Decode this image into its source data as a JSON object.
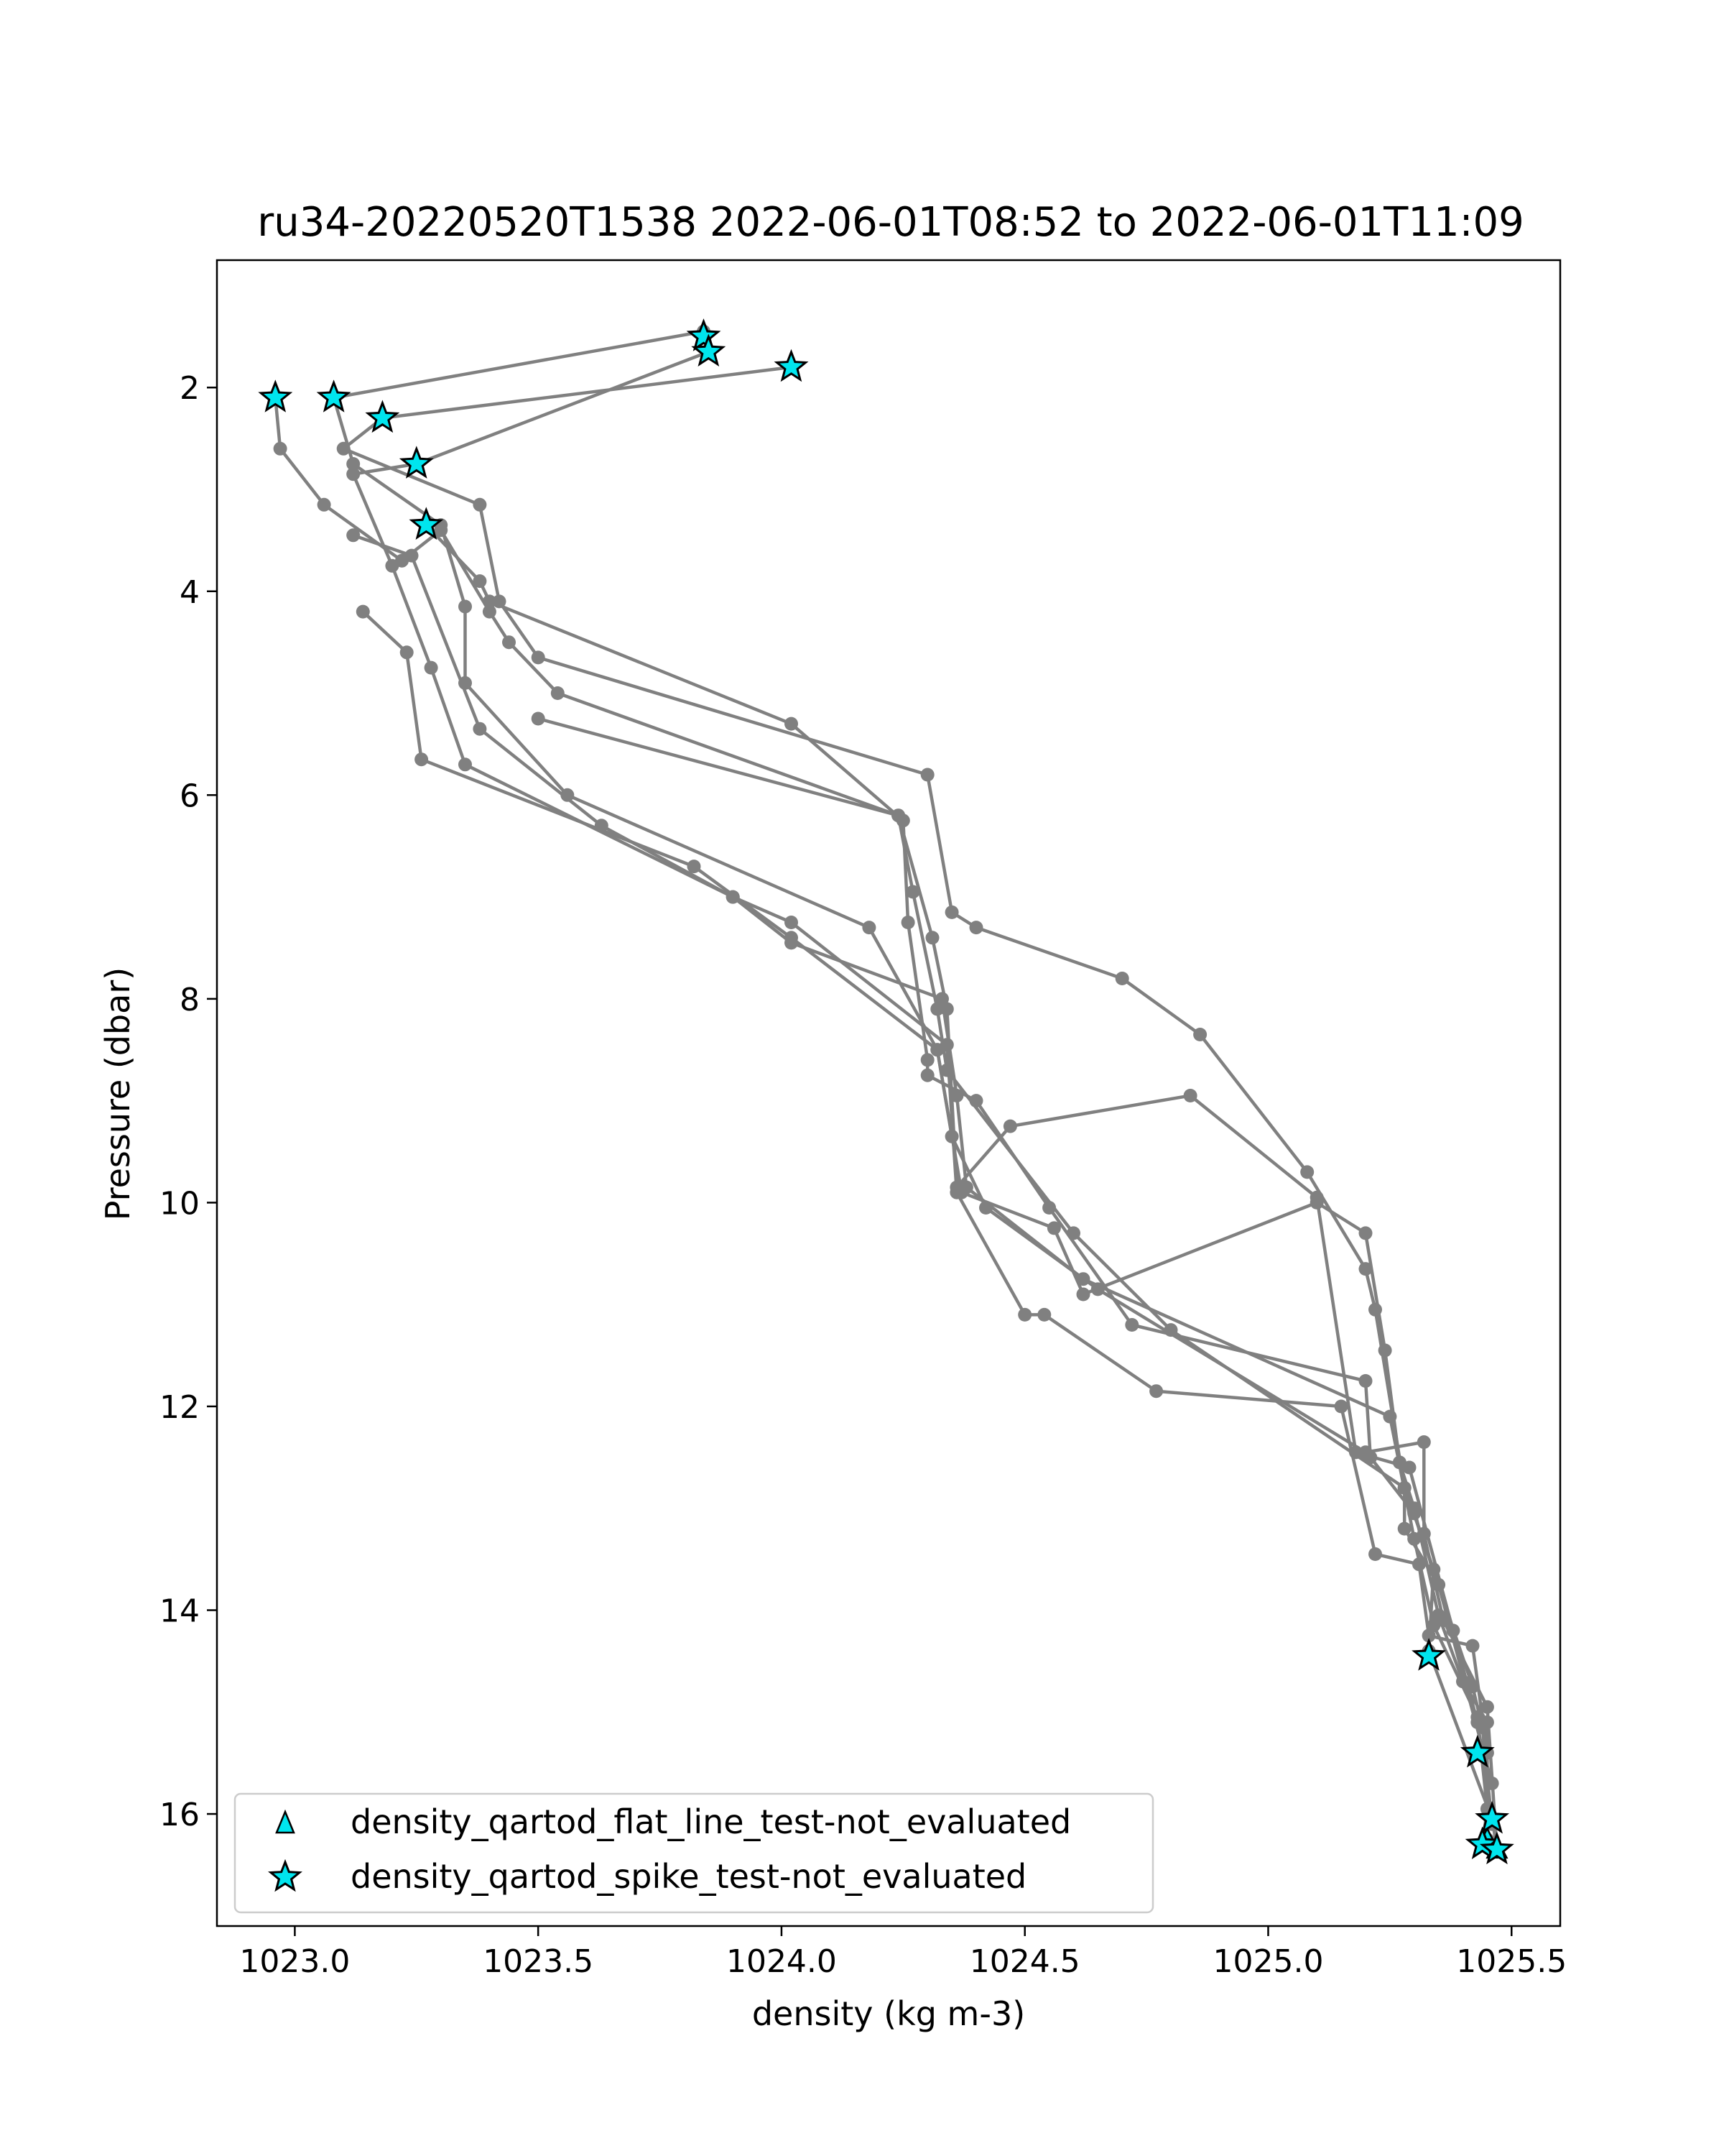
{
  "chart_data": {
    "type": "scatter",
    "title": "ru34-20220520T1538 2022-06-01T08:52 to 2022-06-01T11:09",
    "xlabel": "density (kg m-3)",
    "ylabel": "Pressure (dbar)",
    "xlim": [
      1022.84,
      1025.6
    ],
    "ylim": [
      17.1,
      0.75
    ],
    "y_inverted": true,
    "xticks": [
      1023.0,
      1023.5,
      1024.0,
      1024.5,
      1025.0,
      1025.5
    ],
    "xtick_labels": [
      "1023.0",
      "1023.5",
      "1024.0",
      "1024.5",
      "1025.0",
      "1025.5"
    ],
    "yticks": [
      2,
      4,
      6,
      8,
      10,
      12,
      14,
      16
    ],
    "ytick_labels": [
      "2",
      "4",
      "6",
      "8",
      "10",
      "12",
      "14",
      "16"
    ],
    "grid": false,
    "legend_position": "lower-left",
    "colors": {
      "profile_line": "#808080",
      "flag_marker": "#00e5ee",
      "marker_edge": "#000000"
    },
    "legend": [
      {
        "label": "density_qartod_flat_line_test-not_evaluated",
        "marker": "triangle"
      },
      {
        "label": "density_qartod_spike_test-not_evaluated",
        "marker": "star"
      }
    ],
    "profiles": [
      [
        [
          1023.85,
          1.65
        ],
        [
          1023.25,
          2.75
        ],
        [
          1023.12,
          2.85
        ],
        [
          1023.2,
          3.75
        ],
        [
          1023.28,
          4.75
        ],
        [
          1023.35,
          5.7
        ],
        [
          1023.9,
          7.0
        ],
        [
          1024.02,
          7.45
        ],
        [
          1024.33,
          8.0
        ],
        [
          1024.36,
          8.95
        ],
        [
          1024.38,
          9.85
        ],
        [
          1024.62,
          10.75
        ],
        [
          1025.25,
          12.1
        ],
        [
          1025.3,
          13.3
        ],
        [
          1025.34,
          14.15
        ],
        [
          1025.43,
          15.05
        ],
        [
          1025.45,
          15.95
        ],
        [
          1025.44,
          16.3
        ]
      ],
      [
        [
          1023.84,
          1.45
        ],
        [
          1023.08,
          2.1
        ],
        [
          1023.12,
          2.75
        ],
        [
          1023.3,
          3.35
        ],
        [
          1023.35,
          4.15
        ],
        [
          1023.35,
          4.9
        ],
        [
          1023.56,
          6.0
        ],
        [
          1024.18,
          7.3
        ],
        [
          1024.32,
          8.5
        ],
        [
          1024.35,
          9.35
        ],
        [
          1024.42,
          10.05
        ],
        [
          1024.65,
          10.85
        ],
        [
          1025.2,
          12.45
        ],
        [
          1025.32,
          12.35
        ],
        [
          1025.32,
          13.25
        ],
        [
          1025.36,
          14.1
        ],
        [
          1025.45,
          14.95
        ],
        [
          1025.47,
          16.35
        ]
      ],
      [
        [
          1024.02,
          1.8
        ],
        [
          1023.18,
          2.3
        ],
        [
          1023.1,
          2.6
        ],
        [
          1023.38,
          3.15
        ],
        [
          1023.42,
          4.1
        ],
        [
          1023.5,
          4.65
        ],
        [
          1024.3,
          5.8
        ],
        [
          1024.35,
          7.15
        ],
        [
          1024.4,
          7.3
        ],
        [
          1024.7,
          7.8
        ],
        [
          1024.86,
          8.35
        ],
        [
          1025.08,
          9.7
        ],
        [
          1025.2,
          10.65
        ],
        [
          1025.22,
          11.05
        ],
        [
          1025.28,
          12.8
        ],
        [
          1025.34,
          13.6
        ],
        [
          1025.33,
          14.4
        ],
        [
          1025.46,
          16.05
        ]
      ],
      [
        [
          1022.96,
          2.1
        ],
        [
          1022.97,
          2.6
        ],
        [
          1023.06,
          3.15
        ],
        [
          1023.22,
          3.7
        ],
        [
          1023.3,
          3.4
        ],
        [
          1023.4,
          4.2
        ],
        [
          1023.44,
          4.5
        ],
        [
          1023.54,
          5.0
        ],
        [
          1024.24,
          6.2
        ],
        [
          1024.27,
          6.95
        ],
        [
          1024.32,
          8.1
        ],
        [
          1024.34,
          8.7
        ],
        [
          1024.6,
          10.3
        ],
        [
          1024.8,
          11.25
        ],
        [
          1025.28,
          12.8
        ],
        [
          1025.28,
          13.2
        ],
        [
          1025.35,
          13.75
        ],
        [
          1025.46,
          15.7
        ]
      ],
      [
        [
          1023.27,
          3.35
        ],
        [
          1023.38,
          3.9
        ],
        [
          1023.4,
          4.1
        ],
        [
          1024.02,
          5.3
        ],
        [
          1024.25,
          6.25
        ],
        [
          1024.26,
          7.25
        ],
        [
          1024.3,
          8.6
        ],
        [
          1024.3,
          8.75
        ],
        [
          1024.4,
          9.0
        ],
        [
          1024.55,
          10.05
        ],
        [
          1024.72,
          11.2
        ],
        [
          1025.2,
          11.75
        ],
        [
          1025.21,
          12.5
        ],
        [
          1025.3,
          13.05
        ],
        [
          1025.42,
          14.75
        ],
        [
          1025.44,
          15.15
        ],
        [
          1025.46,
          16.1
        ]
      ],
      [
        [
          1023.12,
          3.45
        ],
        [
          1023.24,
          3.65
        ],
        [
          1023.38,
          5.35
        ],
        [
          1023.63,
          6.3
        ],
        [
          1023.9,
          7.0
        ],
        [
          1024.02,
          7.25
        ],
        [
          1024.34,
          8.45
        ],
        [
          1024.36,
          9.9
        ],
        [
          1024.5,
          11.1
        ],
        [
          1024.54,
          11.1
        ],
        [
          1024.77,
          11.85
        ],
        [
          1025.15,
          12.0
        ],
        [
          1025.22,
          13.45
        ],
        [
          1025.31,
          13.55
        ],
        [
          1025.33,
          14.25
        ],
        [
          1025.42,
          14.35
        ],
        [
          1025.45,
          15.4
        ]
      ],
      [
        [
          1023.14,
          4.2
        ],
        [
          1023.23,
          4.6
        ],
        [
          1023.26,
          5.65
        ],
        [
          1023.82,
          6.7
        ],
        [
          1024.02,
          7.4
        ],
        [
          1024.32,
          8.5
        ],
        [
          1024.37,
          9.9
        ],
        [
          1024.56,
          10.25
        ],
        [
          1024.62,
          10.9
        ],
        [
          1025.1,
          10.0
        ],
        [
          1025.2,
          10.3
        ],
        [
          1025.24,
          11.45
        ],
        [
          1025.27,
          12.55
        ],
        [
          1025.3,
          13.0
        ],
        [
          1025.35,
          14.05
        ],
        [
          1025.4,
          14.7
        ],
        [
          1025.45,
          15.1
        ],
        [
          1025.45,
          16.25
        ]
      ],
      [
        [
          1023.5,
          5.25
        ],
        [
          1024.24,
          6.2
        ],
        [
          1024.31,
          7.4
        ],
        [
          1024.34,
          8.1
        ],
        [
          1024.36,
          9.85
        ],
        [
          1024.47,
          9.25
        ],
        [
          1024.84,
          8.95
        ],
        [
          1025.1,
          9.95
        ],
        [
          1025.18,
          12.45
        ],
        [
          1025.29,
          12.6
        ],
        [
          1025.38,
          14.2
        ],
        [
          1025.43,
          15.1
        ],
        [
          1025.47,
          16.35
        ]
      ]
    ],
    "spike_flag_points": [
      [
        1023.84,
        1.5
      ],
      [
        1023.85,
        1.65
      ],
      [
        1024.02,
        1.8
      ],
      [
        1022.96,
        2.1
      ],
      [
        1023.08,
        2.1
      ],
      [
        1023.18,
        2.3
      ],
      [
        1023.25,
        2.75
      ],
      [
        1023.27,
        3.35
      ],
      [
        1025.33,
        14.45
      ],
      [
        1025.43,
        15.4
      ],
      [
        1025.46,
        16.05
      ],
      [
        1025.44,
        16.3
      ],
      [
        1025.47,
        16.35
      ]
    ],
    "flat_line_flag_points": [
      [
        1025.45,
        16.25
      ],
      [
        1025.47,
        16.35
      ]
    ]
  }
}
